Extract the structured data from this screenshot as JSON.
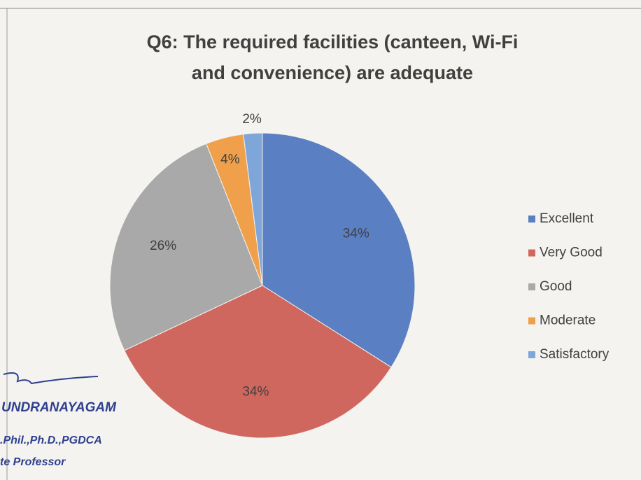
{
  "chart_data": {
    "type": "pie",
    "title": [
      "Q6: The required facilities (canteen, Wi-Fi",
      "and convenience) are adequate"
    ],
    "categories": [
      "Excellent",
      "Very Good",
      "Good",
      "Moderate",
      "Satisfactory"
    ],
    "values": [
      34,
      34,
      26,
      4,
      2
    ],
    "value_labels": [
      "34%",
      "34%",
      "26%",
      "4%",
      "2%"
    ],
    "colors": [
      "#5a7fc2",
      "#d0675f",
      "#a9a9a9",
      "#f0a04b",
      "#7fa6d8"
    ],
    "legend": "right",
    "annotations": [
      "UNDRANAYAGAM",
      ".Phil.,Ph.D.,PGDCA",
      "te Professor"
    ]
  }
}
